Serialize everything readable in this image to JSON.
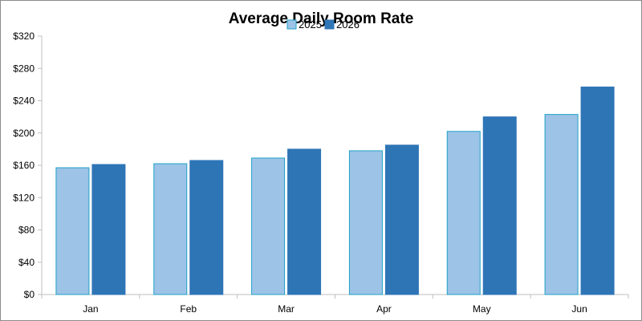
{
  "chart_data": {
    "type": "bar",
    "title": "Average Daily Room Rate",
    "xlabel": "",
    "ylabel": "",
    "categories": [
      "Jan",
      "Feb",
      "Mar",
      "Apr",
      "May",
      "Jun"
    ],
    "series": [
      {
        "name": "2025",
        "values": [
          157,
          162,
          169,
          178,
          202,
          223
        ],
        "color": "#9dc3e6",
        "edge_color": "#1fa2c8"
      },
      {
        "name": "2026",
        "values": [
          161,
          166,
          180,
          185,
          220,
          257
        ],
        "color": "#2e75b6",
        "edge_color": "#2e75b6"
      }
    ],
    "ylim": [
      0,
      320
    ],
    "yticks": [
      0,
      40,
      80,
      120,
      160,
      200,
      240,
      280,
      320
    ],
    "ytick_labels": [
      "$0",
      "$40",
      "$80",
      "$120",
      "$160",
      "$200",
      "$240",
      "$280",
      "$320"
    ],
    "grid": false,
    "legend_position": "top-center"
  }
}
